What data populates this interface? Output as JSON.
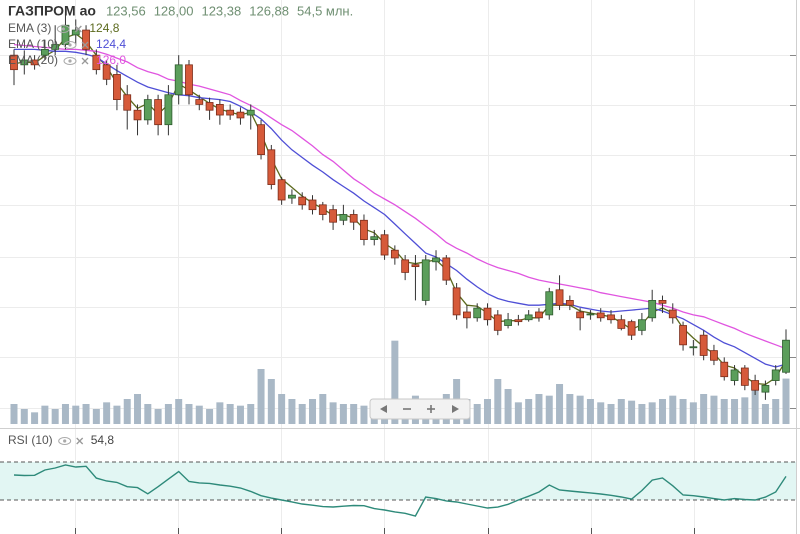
{
  "chart_data": {
    "type": "candlestick",
    "title": "ГАЗПРОМ ао",
    "title_labels": [
      "123,56",
      "128,00",
      "123,38",
      "126,88",
      "54,5 млн."
    ],
    "candles": {
      "open": [
        156.4,
        155.4,
        155.9,
        156.4,
        157.0,
        157.5,
        158.5,
        159.0,
        156.4,
        155.4,
        154.4,
        152.3,
        150.7,
        149.7,
        151.8,
        149.2,
        152.3,
        155.4,
        151.8,
        151.5,
        151.3,
        150.7,
        150.5,
        150.2,
        149.2,
        146.6,
        143.5,
        141.6,
        141.7,
        141.4,
        140.9,
        140.4,
        139.3,
        139.9,
        139.3,
        137.3,
        137.8,
        136.2,
        135.2,
        134.7,
        131.0,
        135.0,
        135.4,
        132.3,
        129.8,
        129.2,
        130.2,
        129.5,
        128.4,
        129.0,
        129.0,
        129.8,
        129.5,
        132.1,
        131.0,
        129.8,
        129.5,
        129.7,
        129.5,
        129.0,
        128.8,
        127.9,
        129.2,
        131.0,
        130.0,
        128.4,
        126.1,
        127.4,
        125.8,
        124.6,
        122.7,
        124.0,
        122.7,
        121.5,
        122.7,
        123.56
      ],
      "close": [
        154.9,
        155.9,
        155.4,
        157.0,
        157.5,
        159.5,
        159.0,
        157.0,
        154.9,
        153.9,
        151.8,
        150.7,
        149.7,
        151.8,
        149.2,
        152.3,
        155.4,
        152.3,
        151.3,
        150.7,
        150.2,
        150.2,
        149.9,
        150.7,
        146.1,
        143.0,
        141.4,
        141.9,
        140.9,
        140.4,
        139.9,
        139.1,
        139.9,
        139.1,
        137.3,
        137.6,
        135.7,
        135.4,
        133.9,
        134.5,
        135.2,
        135.4,
        133.1,
        129.5,
        129.2,
        130.2,
        129.0,
        127.9,
        129.0,
        128.8,
        129.5,
        129.2,
        131.9,
        130.5,
        130.5,
        129.2,
        129.6,
        129.2,
        129.0,
        128.1,
        127.4,
        129.0,
        131.0,
        130.7,
        129.2,
        126.4,
        126.2,
        125.3,
        124.8,
        123.1,
        123.8,
        122.2,
        121.7,
        122.2,
        123.8,
        126.88
      ],
      "high": [
        157.0,
        156.9,
        156.4,
        158.0,
        159.5,
        160.6,
        160.1,
        159.5,
        157.0,
        155.9,
        155.4,
        153.3,
        151.3,
        152.3,
        152.3,
        153.3,
        156.4,
        155.9,
        152.3,
        152.0,
        151.8,
        151.3,
        151.0,
        151.3,
        149.7,
        147.1,
        143.8,
        142.5,
        142.2,
        141.9,
        141.2,
        140.9,
        140.9,
        140.4,
        139.9,
        138.3,
        138.3,
        136.7,
        135.7,
        135.7,
        135.7,
        136.2,
        135.7,
        132.8,
        130.5,
        130.7,
        130.7,
        130.0,
        129.7,
        129.5,
        130.0,
        130.2,
        132.3,
        133.6,
        131.5,
        130.2,
        130.0,
        130.2,
        130.0,
        129.5,
        129.0,
        129.7,
        132.1,
        131.5,
        130.7,
        128.8,
        126.9,
        127.9,
        126.4,
        125.1,
        124.3,
        124.3,
        123.3,
        122.7,
        124.3,
        128.0
      ],
      "low": [
        153.3,
        154.4,
        154.9,
        155.9,
        156.4,
        157.0,
        157.5,
        156.4,
        154.4,
        153.3,
        150.7,
        148.7,
        148.1,
        149.2,
        148.1,
        148.1,
        151.3,
        151.3,
        150.7,
        149.7,
        149.2,
        149.7,
        149.2,
        148.7,
        145.6,
        142.5,
        140.9,
        141.0,
        140.4,
        139.9,
        139.3,
        138.3,
        138.8,
        138.3,
        136.7,
        136.7,
        135.2,
        134.7,
        133.1,
        131.0,
        130.5,
        134.1,
        132.6,
        129.0,
        128.1,
        128.8,
        128.4,
        127.4,
        128.1,
        128.4,
        128.8,
        128.8,
        129.0,
        130.0,
        130.0,
        127.9,
        129.0,
        128.8,
        128.6,
        127.9,
        126.9,
        127.4,
        128.8,
        129.7,
        128.6,
        125.8,
        125.3,
        124.8,
        124.3,
        122.7,
        122.2,
        121.7,
        121.2,
        120.7,
        122.2,
        123.38
      ]
    },
    "volume": [
      24,
      18,
      14,
      22,
      18,
      24,
      22,
      24,
      18,
      26,
      22,
      30,
      36,
      24,
      18,
      24,
      30,
      24,
      22,
      18,
      26,
      24,
      22,
      24,
      66,
      54,
      36,
      30,
      24,
      30,
      36,
      26,
      24,
      24,
      22,
      18,
      24,
      100,
      30,
      34,
      24,
      26,
      36,
      54,
      30,
      24,
      30,
      54,
      42,
      26,
      30,
      36,
      34,
      48,
      36,
      34,
      30,
      26,
      24,
      30,
      28,
      24,
      26,
      30,
      34,
      30,
      26,
      36,
      34,
      30,
      30,
      32,
      42,
      24,
      30,
      54.5
    ],
    "ylim": [
      118.2,
      161.7
    ],
    "volume_ylim": [
      0,
      120
    ],
    "up_color": "#5b9e5b",
    "down_color": "#d65a3a",
    "volume_color": "#a9b8c6",
    "series": [
      {
        "name": "EMA (3)",
        "color": "#5c6a1e",
        "last_label": "124,8",
        "values": [
          155.5,
          155.7,
          155.6,
          156.3,
          156.9,
          158.2,
          158.6,
          157.8,
          156.4,
          155.2,
          153.5,
          152.1,
          150.9,
          151.4,
          150.3,
          151.3,
          153.4,
          152.8,
          152.1,
          151.4,
          150.8,
          150.5,
          150.2,
          150.5,
          148.3,
          145.7,
          143.6,
          142.7,
          141.8,
          141.1,
          140.5,
          139.8,
          139.9,
          139.5,
          138.4,
          138.0,
          136.9,
          136.2,
          135.0,
          134.8,
          135.0,
          135.2,
          134.2,
          131.8,
          130.5,
          130.4,
          129.7,
          128.8,
          128.9,
          128.9,
          129.2,
          129.2,
          130.5,
          130.5,
          130.5,
          129.9,
          129.7,
          129.5,
          129.3,
          128.7,
          128.0,
          128.5,
          129.8,
          130.2,
          129.7,
          128.1,
          127.1,
          126.2,
          125.5,
          124.3,
          124.0,
          123.1,
          122.4,
          122.3,
          123.0,
          124.8
        ]
      },
      {
        "name": "EMA (10)",
        "color": "#4f4fd6",
        "last_label": "124,4",
        "values": [
          157.0,
          157.0,
          157.0,
          156.9,
          156.8,
          156.8,
          156.7,
          156.5,
          156.2,
          155.5,
          154.8,
          154.2,
          153.6,
          153.1,
          152.8,
          152.5,
          152.3,
          152.2,
          152.0,
          151.9,
          151.8,
          151.6,
          151.1,
          150.5,
          149.8,
          148.8,
          147.6,
          146.6,
          145.8,
          145.0,
          144.3,
          143.5,
          142.8,
          142.1,
          141.3,
          140.6,
          139.9,
          138.9,
          137.9,
          136.9,
          135.9,
          135.5,
          134.8,
          134.1,
          133.2,
          132.4,
          131.7,
          131.2,
          130.9,
          130.7,
          130.5,
          130.5,
          130.6,
          130.7,
          130.6,
          130.3,
          130.1,
          129.9,
          129.8,
          129.9,
          130.0,
          130.1,
          130.2,
          129.9,
          129.5,
          129.1,
          128.5,
          127.9,
          127.2,
          126.6,
          126.2,
          125.6,
          125.0,
          124.4,
          124.1,
          124.4
        ]
      },
      {
        "name": "EMA (20)",
        "color": "#e055e0",
        "last_label": "126,0",
        "values": [
          157.5,
          157.4,
          157.3,
          157.2,
          157.1,
          157.0,
          157.0,
          156.9,
          156.8,
          156.5,
          156.1,
          155.7,
          155.1,
          154.7,
          154.4,
          153.9,
          153.7,
          153.4,
          153.2,
          152.9,
          152.6,
          152.3,
          151.7,
          151.2,
          150.6,
          149.9,
          149.2,
          148.6,
          147.8,
          147.0,
          146.1,
          145.4,
          144.5,
          143.6,
          142.9,
          142.1,
          141.5,
          140.9,
          140.2,
          139.5,
          138.7,
          137.9,
          137.0,
          136.4,
          135.9,
          135.3,
          134.8,
          134.4,
          134.1,
          133.8,
          133.4,
          133.1,
          132.9,
          132.7,
          132.5,
          132.3,
          132.1,
          131.8,
          131.6,
          131.4,
          131.2,
          131.0,
          130.8,
          130.5,
          130.2,
          129.8,
          129.5,
          129.3,
          128.9,
          128.5,
          128.1,
          127.6,
          127.2,
          126.8,
          126.4,
          126.0
        ]
      }
    ],
    "rsi": {
      "name": "RSI (10)",
      "color": "#2e8a7a",
      "band_color": "#e2f6f3",
      "last_label": "54,8",
      "ylim": [
        0,
        100
      ],
      "levels": [
        30,
        70
      ],
      "values": [
        56.3,
        55.8,
        56.0,
        61.6,
        63.7,
        66.8,
        64.7,
        65.5,
        53.0,
        50.0,
        48.5,
        44.0,
        43.0,
        36.5,
        44.0,
        52.0,
        60.0,
        49.5,
        48.0,
        47.5,
        45.8,
        44.5,
        42.6,
        39.0,
        34.5,
        32.0,
        30.0,
        28.0,
        25.8,
        24.5,
        23.0,
        22.6,
        23.5,
        24.2,
        24.0,
        21.0,
        19.5,
        17.5,
        16.0,
        13.2,
        33.2,
        31.5,
        29.0,
        27.9,
        25.8,
        23.7,
        21.6,
        22.5,
        25.5,
        30.0,
        34.0,
        38.4,
        45.8,
        40.5,
        39.5,
        38.4,
        37.5,
        36.3,
        35.0,
        33.2,
        31.0,
        40.0,
        51.0,
        53.2,
        45.0,
        35.3,
        34.5,
        33.2,
        31.5,
        30.0,
        31.5,
        30.5,
        30.0,
        33.0,
        38.4,
        54.8
      ]
    }
  }
}
